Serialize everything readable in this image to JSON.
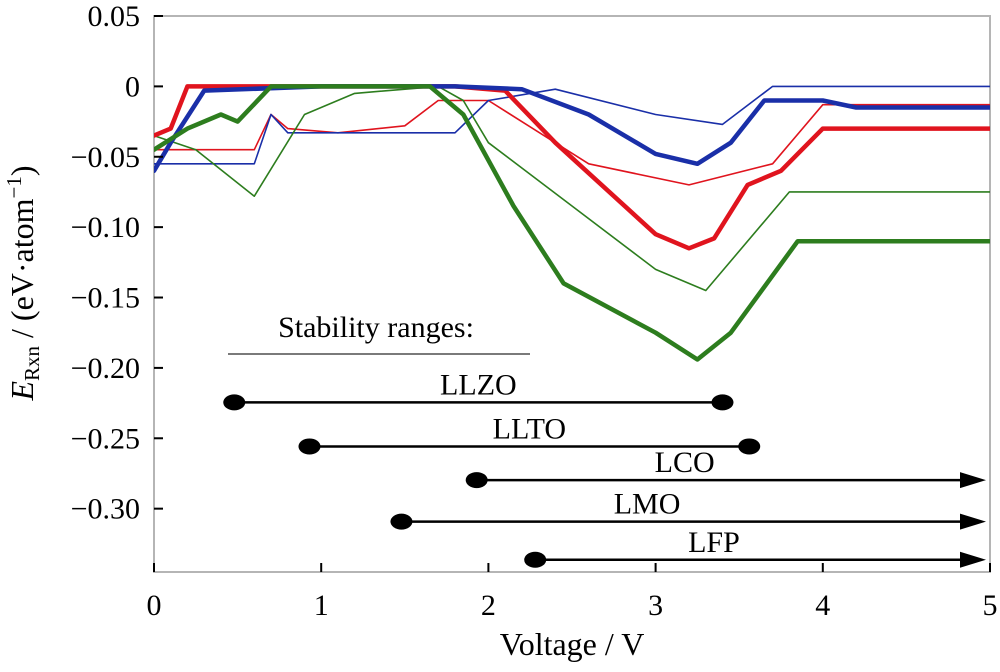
{
  "chart_data": {
    "type": "line",
    "xlabel": "Voltage / V",
    "ylabel": {
      "symbol": "E",
      "subscript": "Rxn",
      "rest": " / (eV·atom",
      "superscript": "−1",
      "close": ")"
    },
    "xlim": [
      0,
      5
    ],
    "ylim": [
      -0.345,
      0.05
    ],
    "xticks": [
      0,
      1,
      2,
      3,
      4,
      5
    ],
    "xtick_labels": [
      "0",
      "1",
      "2",
      "3",
      "4",
      "5"
    ],
    "yticks": [
      0.05,
      0,
      -0.05,
      -0.1,
      -0.15,
      -0.2,
      -0.25,
      -0.3
    ],
    "ytick_labels": [
      "0.05",
      "0",
      "−0.05",
      "−0.10",
      "−0.15",
      "−0.20",
      "−0.25",
      "−0.30"
    ],
    "grid": false,
    "legend": "none",
    "colors": {
      "red": "#e0141e",
      "blue": "#1a2fa8",
      "green": "#2d7d1e",
      "black": "#000000"
    },
    "series": [
      {
        "color": "red",
        "width": "thick",
        "x": [
          0,
          0.1,
          0.2,
          1.0,
          1.8,
          2.1,
          2.4,
          3.0,
          3.2,
          3.35,
          3.55,
          3.75,
          4.0,
          5
        ],
        "y": [
          -0.035,
          -0.03,
          0,
          0,
          0,
          -0.003,
          -0.04,
          -0.105,
          -0.115,
          -0.108,
          -0.07,
          -0.06,
          -0.03,
          -0.03
        ]
      },
      {
        "color": "red",
        "width": "thin",
        "x": [
          0,
          0.6,
          0.7,
          0.8,
          1.1,
          1.5,
          1.7,
          2.0,
          2.6,
          3.2,
          3.7,
          4.0,
          5
        ],
        "y": [
          -0.045,
          -0.045,
          -0.02,
          -0.03,
          -0.033,
          -0.028,
          -0.01,
          -0.01,
          -0.055,
          -0.07,
          -0.055,
          -0.013,
          -0.013
        ]
      },
      {
        "color": "blue",
        "width": "thick",
        "x": [
          0,
          0.1,
          0.3,
          1.0,
          1.8,
          2.2,
          2.6,
          3.0,
          3.25,
          3.45,
          3.65,
          4.0,
          4.2,
          5
        ],
        "y": [
          -0.06,
          -0.04,
          -0.003,
          0,
          0,
          -0.002,
          -0.02,
          -0.048,
          -0.055,
          -0.04,
          -0.01,
          -0.01,
          -0.015,
          -0.015
        ]
      },
      {
        "color": "blue",
        "width": "thin",
        "x": [
          0,
          0.6,
          0.7,
          0.8,
          1.0,
          1.8,
          2.0,
          2.4,
          3.0,
          3.4,
          3.7,
          4.0,
          5
        ],
        "y": [
          -0.055,
          -0.055,
          -0.02,
          -0.033,
          -0.033,
          -0.033,
          -0.01,
          -0.002,
          -0.02,
          -0.027,
          0,
          0,
          0
        ]
      },
      {
        "color": "green",
        "width": "thick",
        "x": [
          0,
          0.2,
          0.4,
          0.5,
          0.7,
          1.0,
          1.65,
          1.85,
          2.15,
          2.45,
          3.0,
          3.25,
          3.45,
          3.85,
          5
        ],
        "y": [
          -0.045,
          -0.03,
          -0.02,
          -0.025,
          0,
          0,
          0,
          -0.02,
          -0.085,
          -0.14,
          -0.175,
          -0.194,
          -0.175,
          -0.11,
          -0.11
        ]
      },
      {
        "color": "green",
        "width": "thin",
        "x": [
          0,
          0.25,
          0.6,
          0.9,
          1.2,
          1.7,
          1.85,
          2.0,
          2.5,
          3.0,
          3.3,
          3.8,
          5
        ],
        "y": [
          -0.035,
          -0.045,
          -0.078,
          -0.02,
          -0.005,
          0,
          -0.01,
          -0.04,
          -0.085,
          -0.13,
          -0.145,
          -0.075,
          -0.075
        ]
      }
    ],
    "annotations": {
      "heading": "Stability ranges:",
      "ranges": [
        {
          "label": "LLZO",
          "start": 0.48,
          "end": 3.4,
          "y": -0.2245,
          "arrow": false
        },
        {
          "label": "LLTO",
          "start": 0.93,
          "end": 3.56,
          "y": -0.2558,
          "arrow": false
        },
        {
          "label": "LCO",
          "start": 1.93,
          "end": 5,
          "y": -0.2797,
          "arrow": true
        },
        {
          "label": "LMO",
          "start": 1.48,
          "end": 5,
          "y": -0.3092,
          "arrow": true
        },
        {
          "label": "LFP",
          "start": 2.28,
          "end": 5,
          "y": -0.3363,
          "arrow": true
        }
      ]
    }
  }
}
